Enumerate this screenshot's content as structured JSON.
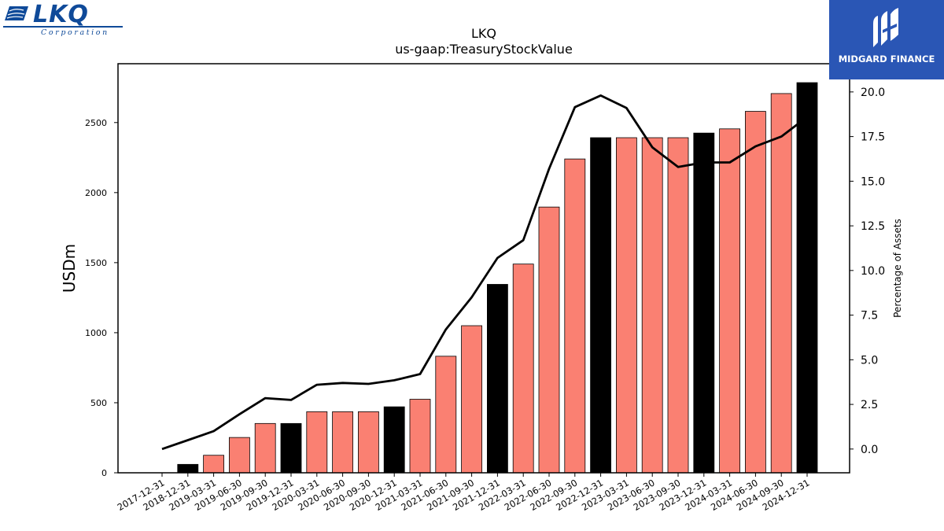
{
  "branding": {
    "company_logo": {
      "name": "LKQ",
      "subtitle": "Corporation",
      "color": "#0f4a99"
    },
    "watermark": {
      "text": "MIDGARD FINANCE",
      "background": "#2a56b5",
      "icon": "midgard-finance-mark-icon"
    }
  },
  "chart_data": {
    "type": "bar",
    "title": "LKQ",
    "subtitle": "us-gaap:TreasuryStockValue",
    "ylabel": "USDm",
    "y2label": "Percentage of Assets",
    "ylim": [
      0,
      2920
    ],
    "y2lim": [
      -1.33,
      21.58
    ],
    "yticks": [
      0,
      500,
      1000,
      1500,
      2000,
      2500
    ],
    "y2ticks": [
      "0.0",
      "2.5",
      "5.0",
      "7.5",
      "10.0",
      "12.5",
      "15.0",
      "17.5",
      "20.0"
    ],
    "categories": [
      "2017-12-31",
      "2018-12-31",
      "2019-03-31",
      "2019-06-30",
      "2019-09-30",
      "2019-12-31",
      "2020-03-31",
      "2020-06-30",
      "2020-09-30",
      "2020-12-31",
      "2021-03-31",
      "2021-06-30",
      "2021-09-30",
      "2021-12-31",
      "2022-03-31",
      "2022-06-30",
      "2022-09-30",
      "2022-12-31",
      "2023-03-31",
      "2023-06-30",
      "2023-09-30",
      "2023-12-31",
      "2024-03-31",
      "2024-06-30",
      "2024-09-30",
      "2024-12-31"
    ],
    "series": [
      {
        "type": "bar",
        "values": [
          0,
          60,
          125,
          252,
          352,
          352,
          436,
          436,
          436,
          471,
          525,
          832,
          1050,
          1345,
          1490,
          1897,
          2240,
          2392,
          2392,
          2392,
          2392,
          2425,
          2455,
          2580,
          2707,
          2785
        ],
        "highlight_color": "#000000",
        "default_color": "#fa8072",
        "highlighted": [
          false,
          true,
          false,
          false,
          false,
          true,
          false,
          false,
          false,
          true,
          false,
          false,
          false,
          true,
          false,
          false,
          false,
          true,
          false,
          false,
          false,
          true,
          false,
          false,
          false,
          true
        ]
      },
      {
        "type": "line",
        "axis": "right",
        "color": "#000000",
        "values": [
          0.0,
          0.5,
          1.0,
          1.95,
          2.85,
          2.75,
          3.6,
          3.7,
          3.65,
          3.85,
          4.2,
          6.7,
          8.5,
          10.7,
          11.7,
          15.7,
          19.15,
          19.8,
          19.1,
          16.9,
          15.8,
          16.05,
          16.05,
          16.95,
          17.5,
          18.6
        ]
      }
    ]
  }
}
